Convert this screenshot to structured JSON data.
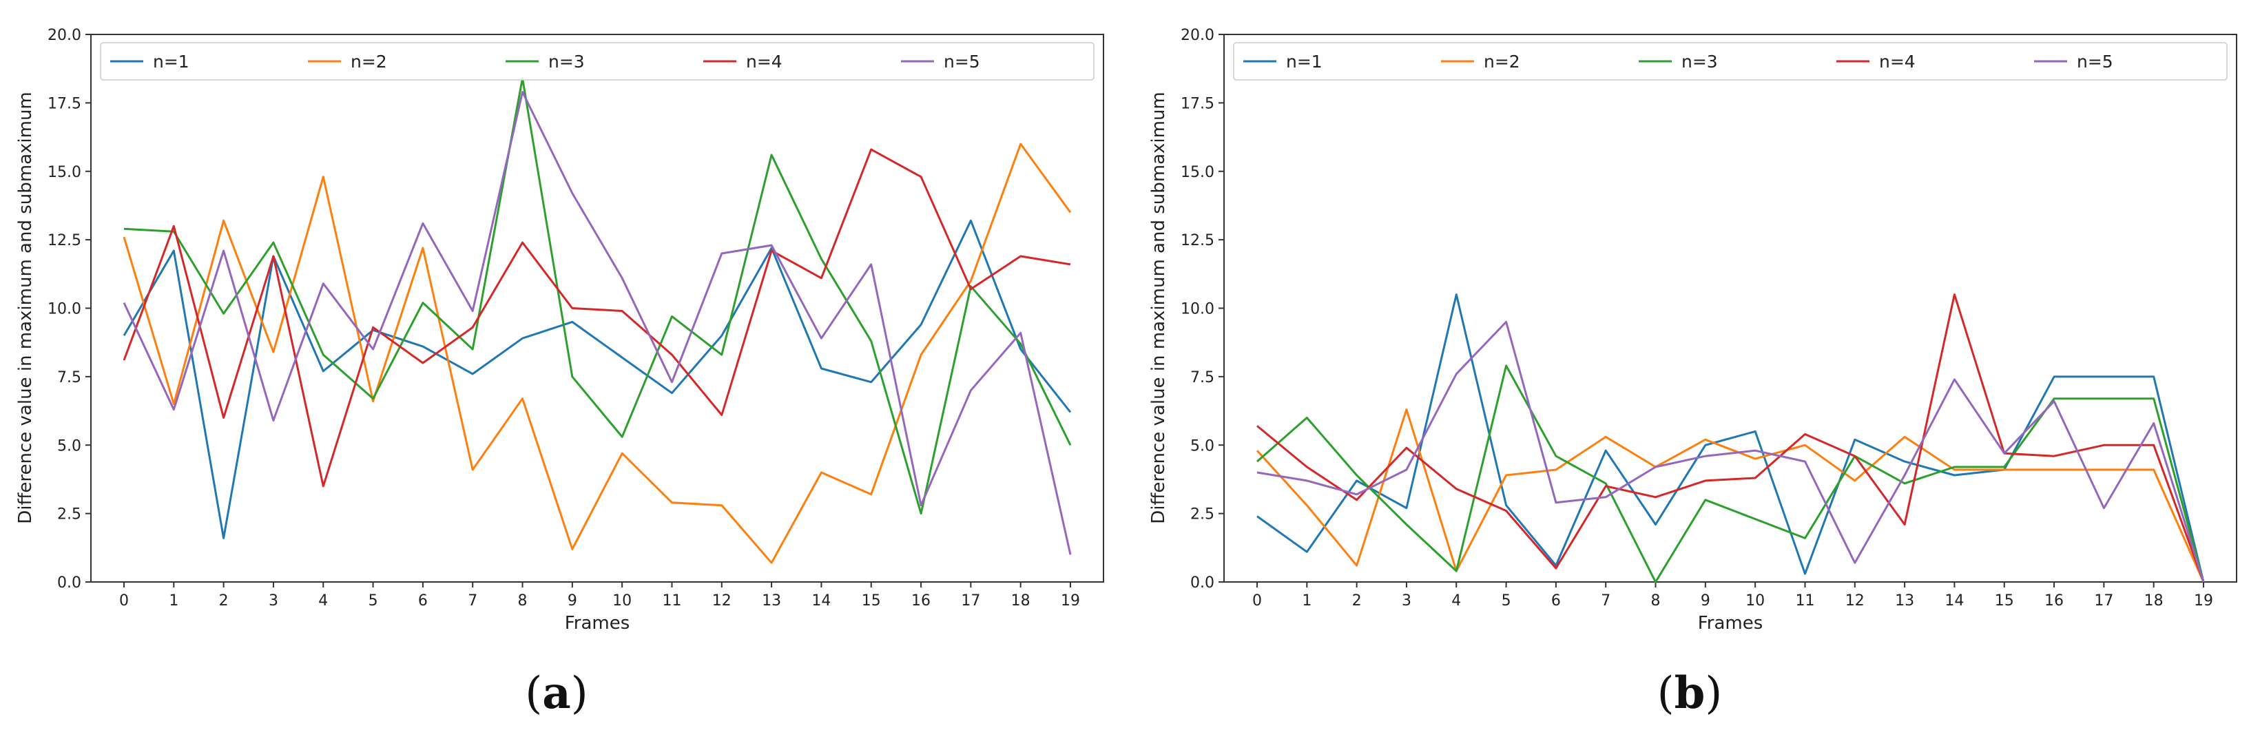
{
  "chart_data": [
    {
      "type": "line",
      "panel_label": "a",
      "xlabel": "Frames",
      "ylabel": "Difference value in maximum and submaximum",
      "ylim": [
        0.0,
        20.0
      ],
      "yticks": [
        "0.0",
        "2.5",
        "5.0",
        "7.5",
        "10.0",
        "12.5",
        "15.0",
        "17.5",
        "20.0"
      ],
      "x": [
        0,
        1,
        2,
        3,
        4,
        5,
        6,
        7,
        8,
        9,
        10,
        11,
        12,
        13,
        14,
        15,
        16,
        17,
        18,
        19
      ],
      "legend_position": "top",
      "series": [
        {
          "name": "n=1",
          "color": "#1f77b4",
          "values": [
            9.0,
            12.1,
            1.6,
            11.9,
            7.7,
            9.2,
            8.6,
            7.6,
            8.9,
            9.5,
            8.2,
            6.9,
            9.0,
            12.2,
            7.8,
            7.3,
            9.4,
            13.2,
            8.5,
            6.2
          ]
        },
        {
          "name": "n=2",
          "color": "#ff7f0e",
          "values": [
            12.6,
            6.5,
            13.2,
            8.4,
            14.8,
            6.6,
            12.2,
            4.1,
            6.7,
            1.2,
            4.7,
            2.9,
            2.8,
            0.7,
            4.0,
            3.2,
            8.3,
            11.0,
            16.0,
            13.5
          ]
        },
        {
          "name": "n=3",
          "color": "#2ca02c",
          "values": [
            12.9,
            12.8,
            9.8,
            12.4,
            8.3,
            6.7,
            10.2,
            8.5,
            18.4,
            7.5,
            5.3,
            9.7,
            8.3,
            15.6,
            11.8,
            8.8,
            2.5,
            10.8,
            8.7,
            5.0
          ]
        },
        {
          "name": "n=4",
          "color": "#d62728",
          "values": [
            8.1,
            13.0,
            6.0,
            11.9,
            3.5,
            9.3,
            8.0,
            9.3,
            12.4,
            10.0,
            9.9,
            8.3,
            6.1,
            12.1,
            11.1,
            15.8,
            14.8,
            10.7,
            11.9,
            11.6
          ]
        },
        {
          "name": "n=5",
          "color": "#9467bd",
          "values": [
            10.2,
            6.3,
            12.1,
            5.9,
            10.9,
            8.5,
            13.1,
            9.9,
            17.9,
            14.2,
            11.1,
            7.3,
            12.0,
            12.3,
            8.9,
            11.6,
            2.8,
            7.0,
            9.1,
            1.0
          ]
        }
      ]
    },
    {
      "type": "line",
      "panel_label": "b",
      "xlabel": "Frames",
      "ylabel": "Difference value in maximum and submaximum",
      "ylim": [
        0.0,
        20.0
      ],
      "yticks": [
        "0.0",
        "2.5",
        "5.0",
        "7.5",
        "10.0",
        "12.5",
        "15.0",
        "17.5",
        "20.0"
      ],
      "x": [
        0,
        1,
        2,
        3,
        4,
        5,
        6,
        7,
        8,
        9,
        10,
        11,
        12,
        13,
        14,
        15,
        16,
        17,
        18,
        19
      ],
      "legend_position": "top",
      "series": [
        {
          "name": "n=1",
          "color": "#1f77b4",
          "values": [
            2.4,
            1.1,
            3.7,
            2.7,
            10.5,
            2.8,
            0.6,
            4.8,
            2.1,
            5.0,
            5.5,
            0.3,
            5.2,
            4.4,
            3.9,
            4.1,
            7.5,
            7.5,
            7.5,
            0.0
          ]
        },
        {
          "name": "n=2",
          "color": "#ff7f0e",
          "values": [
            4.8,
            2.8,
            0.6,
            6.3,
            0.4,
            3.9,
            4.1,
            5.3,
            4.2,
            5.2,
            4.5,
            5.0,
            3.7,
            5.3,
            4.1,
            4.1,
            4.1,
            4.1,
            4.1,
            0.0
          ]
        },
        {
          "name": "n=3",
          "color": "#2ca02c",
          "values": [
            4.4,
            6.0,
            3.9,
            2.1,
            0.4,
            7.9,
            4.6,
            3.6,
            0.0,
            3.0,
            2.3,
            1.6,
            4.6,
            3.6,
            4.2,
            4.2,
            6.7,
            6.7,
            6.7,
            0.0
          ]
        },
        {
          "name": "n=4",
          "color": "#d62728",
          "values": [
            5.7,
            4.2,
            3.0,
            4.9,
            3.4,
            2.6,
            0.5,
            3.5,
            3.1,
            3.7,
            3.8,
            5.4,
            4.6,
            2.1,
            10.5,
            4.7,
            4.6,
            5.0,
            5.0,
            0.0
          ]
        },
        {
          "name": "n=5",
          "color": "#9467bd",
          "values": [
            4.0,
            3.7,
            3.2,
            4.1,
            7.6,
            9.5,
            2.9,
            3.1,
            4.2,
            4.6,
            4.8,
            4.4,
            0.7,
            3.9,
            7.4,
            4.7,
            6.6,
            2.7,
            5.8,
            0.0
          ]
        }
      ]
    }
  ]
}
